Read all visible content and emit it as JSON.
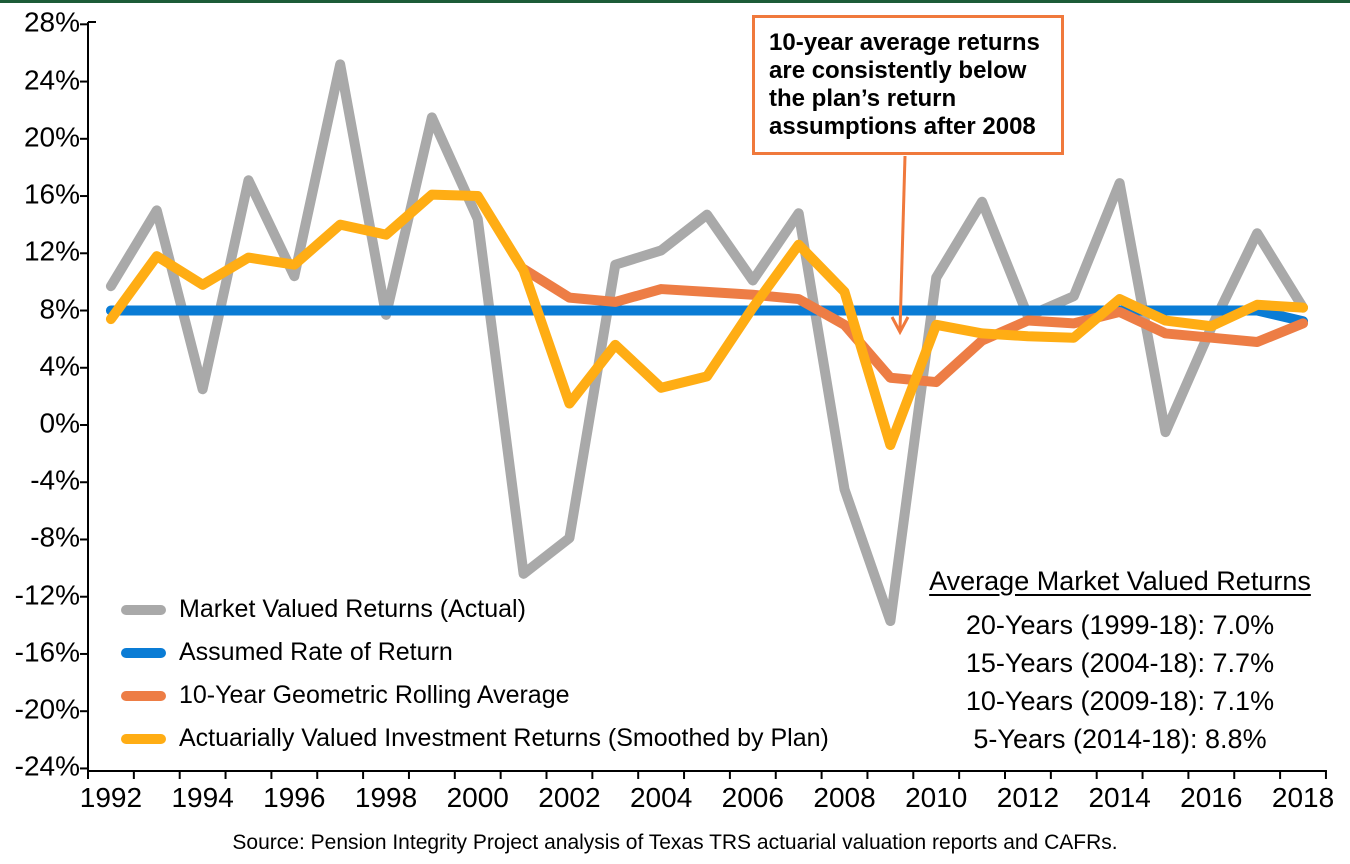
{
  "page": {
    "top_border_color": "#1D5C38",
    "background": "#ffffff"
  },
  "chart_data": {
    "type": "line",
    "title": "",
    "xlabel": "",
    "ylabel": "",
    "grid": false,
    "x": [
      1992,
      1993,
      1994,
      1995,
      1996,
      1997,
      1998,
      1999,
      2000,
      2001,
      2002,
      2003,
      2004,
      2005,
      2006,
      2007,
      2008,
      2009,
      2010,
      2011,
      2012,
      2013,
      2014,
      2015,
      2016,
      2017,
      2018
    ],
    "x_tick_labels": [
      "1992",
      "1994",
      "1996",
      "1998",
      "2000",
      "2002",
      "2004",
      "2006",
      "2008",
      "2010",
      "2012",
      "2014",
      "2016",
      "2018"
    ],
    "y_tick_values": [
      28,
      24,
      20,
      16,
      12,
      8,
      4,
      0,
      -4,
      -8,
      -12,
      -16,
      -20,
      -24
    ],
    "y_tick_labels": [
      "28%",
      "24%",
      "20%",
      "16%",
      "12%",
      "8%",
      "4%",
      "0%",
      "-4%",
      "-8%",
      "-12%",
      "-16%",
      "-20%",
      "-24%"
    ],
    "ylim": [
      -24,
      28
    ],
    "legend_position": "bottom-left-inside",
    "series": [
      {
        "name": "Market Valued Returns (Actual)",
        "color": "#A9A9A9",
        "values": [
          9.7,
          15.0,
          2.5,
          17.1,
          10.4,
          25.2,
          7.7,
          21.5,
          14.4,
          -10.4,
          -7.9,
          11.2,
          12.2,
          14.7,
          10.1,
          14.8,
          -4.5,
          -13.7,
          10.3,
          15.6,
          7.6,
          9.0,
          16.9,
          -0.5,
          6.8,
          13.4,
          8.2
        ]
      },
      {
        "name": "Assumed Rate of Return",
        "color": "#0A7CD5",
        "values": [
          8,
          8,
          8,
          8,
          8,
          8,
          8,
          8,
          8,
          8,
          8,
          8,
          8,
          8,
          8,
          8,
          8,
          8,
          8,
          8,
          8,
          8,
          8,
          8,
          8,
          8,
          7.25
        ]
      },
      {
        "name": "10-Year Geometric Rolling Average",
        "color": "#ED7D45",
        "values": [
          null,
          null,
          null,
          null,
          null,
          null,
          null,
          null,
          null,
          10.9,
          8.9,
          8.6,
          9.5,
          9.3,
          9.1,
          8.8,
          7.0,
          3.3,
          3.0,
          5.9,
          7.3,
          7.1,
          7.9,
          6.4,
          6.1,
          5.8,
          7.1
        ]
      },
      {
        "name": "Actuarially Valued Investment Returns (Smoothed by Plan)",
        "color": "#FFAD14",
        "values": [
          7.4,
          11.8,
          9.8,
          11.7,
          11.2,
          14.0,
          13.3,
          16.1,
          16.0,
          10.8,
          1.5,
          5.6,
          2.6,
          3.4,
          8.2,
          12.6,
          9.3,
          -1.4,
          7.0,
          6.4,
          6.2,
          6.1,
          8.8,
          7.3,
          6.9,
          8.4,
          8.2
        ]
      }
    ]
  },
  "annotation": {
    "text": "10-year average returns are consistently below the plan’s return assumptions after 2008",
    "border_color": "#F0793C",
    "arrow_color": "#F0793C"
  },
  "stats": {
    "title": "Average Market Valued Returns",
    "lines": [
      "20-Years (1999-18): 7.0%",
      "15-Years (2004-18): 7.7%",
      "10-Years (2009-18): 7.1%",
      "5-Years (2014-18): 8.8%"
    ]
  },
  "source": "Source: Pension Integrity Project analysis of Texas TRS actuarial valuation reports and CAFRs."
}
